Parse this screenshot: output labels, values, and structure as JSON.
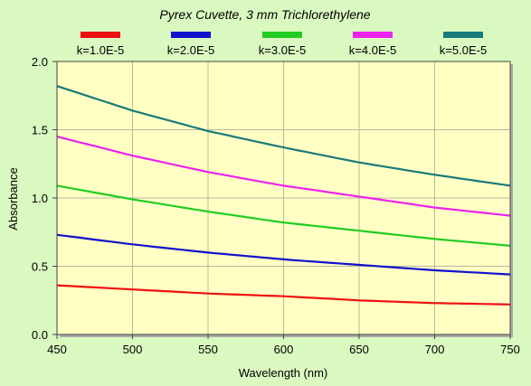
{
  "chart_data": {
    "type": "line",
    "title": "Pyrex Cuvette, 3 mm Trichlorethylene",
    "xlabel": "Wavelength (nm)",
    "ylabel": "Absorbance",
    "xlim": [
      450,
      750
    ],
    "ylim": [
      0,
      2.0
    ],
    "x_ticks": [
      "450",
      "500",
      "550",
      "600",
      "650",
      "700",
      "750"
    ],
    "y_ticks": [
      "0.0",
      "0.5",
      "1.0",
      "1.5",
      "2.0"
    ],
    "grid": true,
    "legend_position": "top",
    "x": [
      450,
      500,
      550,
      600,
      650,
      700,
      750
    ],
    "series": [
      {
        "name": "k=1.0E-5",
        "color": "#ee1111",
        "values": [
          0.36,
          0.33,
          0.3,
          0.28,
          0.25,
          0.23,
          0.22
        ]
      },
      {
        "name": "k=2.0E-5",
        "color": "#1111cc",
        "values": [
          0.73,
          0.66,
          0.6,
          0.55,
          0.51,
          0.47,
          0.44
        ]
      },
      {
        "name": "k=3.0E-5",
        "color": "#22cc22",
        "values": [
          1.09,
          0.99,
          0.9,
          0.82,
          0.76,
          0.7,
          0.65
        ]
      },
      {
        "name": "k=4.0E-5",
        "color": "#ee22ee",
        "values": [
          1.45,
          1.31,
          1.19,
          1.09,
          1.01,
          0.93,
          0.87
        ]
      },
      {
        "name": "k=5.0E-5",
        "color": "#1a7a7a",
        "values": [
          1.82,
          1.64,
          1.49,
          1.37,
          1.26,
          1.17,
          1.09
        ]
      }
    ]
  }
}
